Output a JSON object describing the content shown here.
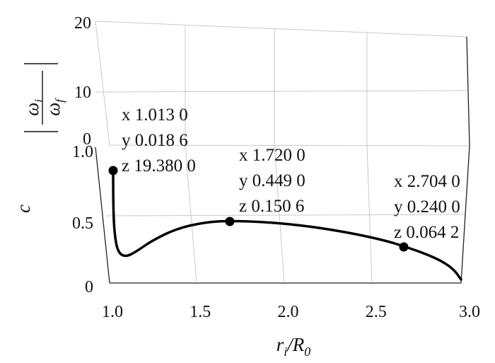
{
  "chart_data": {
    "type": "line",
    "view": "3d",
    "xlabel": "r",
    "xlabel_sub": "i",
    "xlabel_mid": "/R",
    "xlabel_sub2": "0",
    "ylabel": "c",
    "zlabel_num": "ω",
    "zlabel_num_sub": "i",
    "zlabel_den": "ω",
    "zlabel_den_sub": "f",
    "x_ticks": [
      "1.0",
      "1.5",
      "2.0",
      "2.5",
      "3.0"
    ],
    "y_ticks": [
      "0",
      "0.5",
      "1.0"
    ],
    "z_ticks": [
      "0",
      "10",
      "20"
    ],
    "xlim": [
      1.0,
      3.0
    ],
    "ylim": [
      0,
      1.0
    ],
    "zlim": [
      0,
      20
    ],
    "grid": true,
    "series": [
      {
        "x": [
          1.013,
          1.03,
          1.05,
          1.08,
          1.12,
          1.2,
          1.35,
          1.5,
          1.72,
          2.0,
          2.3,
          2.5,
          2.704,
          2.85,
          2.95,
          3.0
        ],
        "y": [
          0.0186,
          0.05,
          0.1,
          0.14,
          0.2,
          0.28,
          0.38,
          0.43,
          0.449,
          0.43,
          0.38,
          0.33,
          0.24,
          0.16,
          0.08,
          0.0
        ],
        "z": [
          19.38,
          8.0,
          3.0,
          1.2,
          0.8,
          0.5,
          0.3,
          0.2,
          0.1506,
          0.12,
          0.1,
          0.08,
          0.0642,
          0.05,
          0.03,
          0.0
        ]
      }
    ],
    "marked_points": [
      {
        "x": 1.013,
        "y": 0.0186,
        "z": 19.38,
        "lines": [
          "x 1.013 0",
          "y 0.018 6",
          "z 19.380 0"
        ]
      },
      {
        "x": 1.72,
        "y": 0.449,
        "z": 0.1506,
        "lines": [
          "x 1.720 0",
          "y 0.449 0",
          "z 0.150 6"
        ]
      },
      {
        "x": 2.704,
        "y": 0.24,
        "z": 0.0642,
        "lines": [
          "x 2.704 0",
          "y 0.240 0",
          "z 0.064 2"
        ]
      }
    ]
  }
}
